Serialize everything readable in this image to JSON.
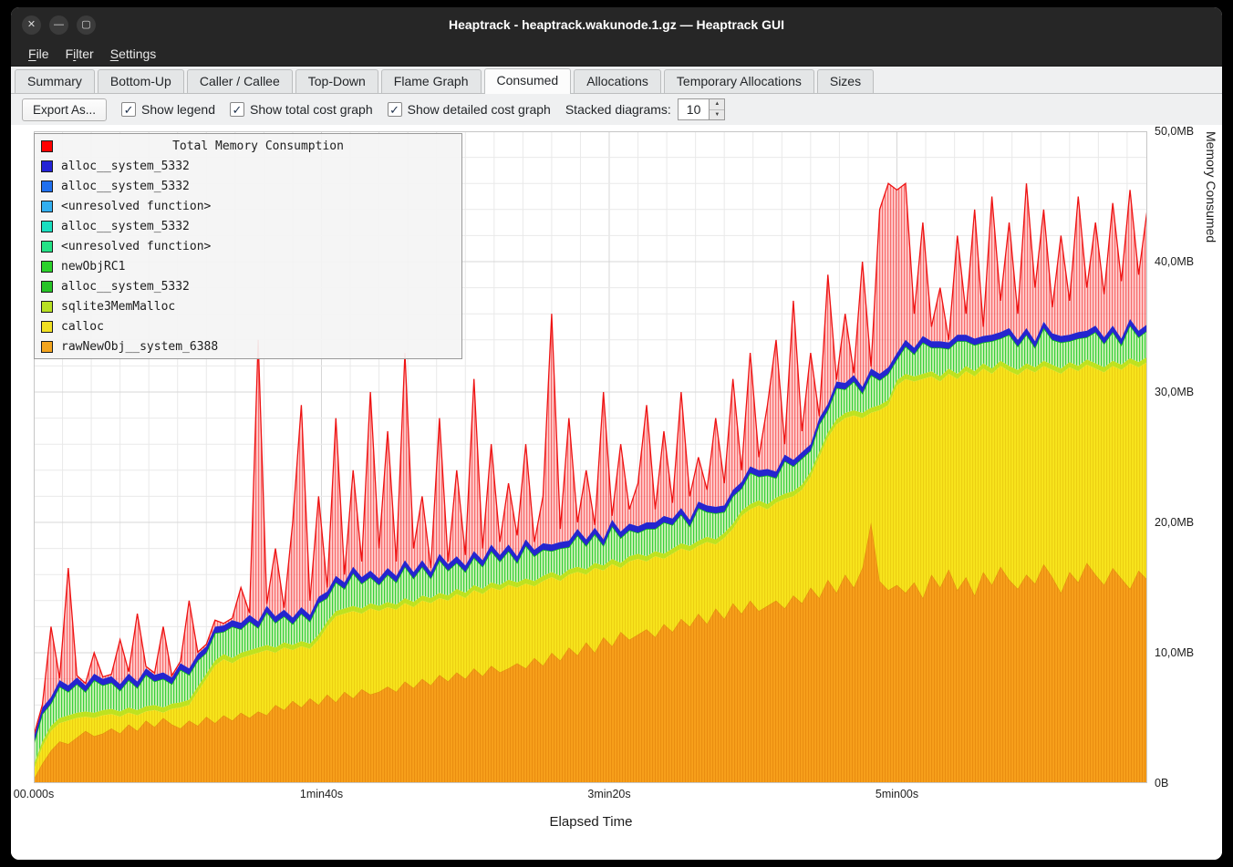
{
  "window": {
    "title": "Heaptrack - heaptrack.wakunode.1.gz — Heaptrack GUI",
    "controls": {
      "close": "✕",
      "minimize": "—",
      "maximize": "▢"
    }
  },
  "menubar": {
    "items": [
      {
        "label": "File",
        "mnemonic_index": 0
      },
      {
        "label": "Filter",
        "mnemonic_index": 1
      },
      {
        "label": "Settings",
        "mnemonic_index": 0
      }
    ]
  },
  "tabs": {
    "active": "Consumed",
    "items": [
      "Summary",
      "Bottom-Up",
      "Caller / Callee",
      "Top-Down",
      "Flame Graph",
      "Consumed",
      "Allocations",
      "Temporary Allocations",
      "Sizes"
    ]
  },
  "toolbar": {
    "export_label": "Export As...",
    "checkboxes": [
      {
        "label": "Show legend",
        "checked": true
      },
      {
        "label": "Show total cost graph",
        "checked": true
      },
      {
        "label": "Show detailed cost graph",
        "checked": true
      }
    ],
    "stacked_label": "Stacked diagrams:",
    "stacked_value": "10",
    "check_glyph": "✓",
    "spin_up": "▲",
    "spin_down": "▼"
  },
  "chart_data": {
    "type": "area",
    "title": "Total Memory Consumption",
    "xlabel": "Elapsed Time",
    "ylabel": "Memory Consumed",
    "x_max_seconds": 387,
    "series_x_step_seconds": 3,
    "ylim_mb": [
      0,
      50
    ],
    "x_ticks": [
      {
        "label": "00.000s",
        "sec": 0
      },
      {
        "label": "1min40s",
        "sec": 100
      },
      {
        "label": "3min20s",
        "sec": 200
      },
      {
        "label": "5min00s",
        "sec": 300
      }
    ],
    "y_ticks": [
      {
        "label": "0B",
        "mb": 0
      },
      {
        "label": "10,0MB",
        "mb": 10
      },
      {
        "label": "20,0MB",
        "mb": 20
      },
      {
        "label": "30,0MB",
        "mb": 30
      },
      {
        "label": "40,0MB",
        "mb": 40
      },
      {
        "label": "50,0MB",
        "mb": 50
      }
    ],
    "legend": [
      {
        "color": "#ff0000",
        "label": "Total Memory Consumption",
        "is_title": true
      },
      {
        "color": "#2323d6",
        "label": "alloc__system_5332"
      },
      {
        "color": "#2070ee",
        "label": "alloc__system_5332"
      },
      {
        "color": "#32aff0",
        "label": "<unresolved function>"
      },
      {
        "color": "#19dfc0",
        "label": "alloc__system_5332"
      },
      {
        "color": "#23e286",
        "label": "<unresolved function>"
      },
      {
        "color": "#2bd22b",
        "label": "newObjRC1"
      },
      {
        "color": "#27c427",
        "label": "alloc__system_5332"
      },
      {
        "color": "#b8e022",
        "label": "sqlite3MemMalloc"
      },
      {
        "color": "#f0e022",
        "label": "calloc"
      },
      {
        "color": "#f2a41d",
        "label": "rawNewObj__system_6388"
      }
    ],
    "series": [
      {
        "name": "rawNewObj__system_6388",
        "role": "orange",
        "color": "#f7a01b",
        "top_mb": [
          0.3,
          1.5,
          2.5,
          3.2,
          3.0,
          3.5,
          4.0,
          3.6,
          3.8,
          4.2,
          3.8,
          4.5,
          4.0,
          4.8,
          4.3,
          5.0,
          4.5,
          4.2,
          4.8,
          4.4,
          5.1,
          4.6,
          5.2,
          4.8,
          5.4,
          5.0,
          5.5,
          5.2,
          6.0,
          5.6,
          6.3,
          5.8,
          6.5,
          6.0,
          6.8,
          6.2,
          7.0,
          6.5,
          7.2,
          6.8,
          7.0,
          7.4,
          7.0,
          7.8,
          7.3,
          8.0,
          7.5,
          8.3,
          7.8,
          8.5,
          8.0,
          8.8,
          8.2,
          9.0,
          8.5,
          8.8,
          9.2,
          8.8,
          9.6,
          9.0,
          10.0,
          9.4,
          10.4,
          9.8,
          10.8,
          10.0,
          11.2,
          10.5,
          11.6,
          11.0,
          11.4,
          11.8,
          11.2,
          12.2,
          11.6,
          12.6,
          12.0,
          13.0,
          12.2,
          13.4,
          12.6,
          13.8,
          13.0,
          14.0,
          13.2,
          13.6,
          14.0,
          13.4,
          14.4,
          13.8,
          15.0,
          14.2,
          15.6,
          14.6,
          16.0,
          15.0,
          16.5,
          20.0,
          15.5,
          14.8,
          15.2,
          14.6,
          15.4,
          14.2,
          16.0,
          15.0,
          16.4,
          14.8,
          15.8,
          14.4,
          16.2,
          15.2,
          16.6,
          15.6,
          14.9,
          16.0,
          15.3,
          16.8,
          15.8,
          14.6,
          16.2,
          15.4,
          16.9,
          16.0,
          15.2,
          16.5,
          15.7,
          14.9,
          16.3,
          15.6
        ]
      },
      {
        "name": "calloc",
        "role": "yellow",
        "color": "#f8e41c",
        "top_mb": [
          1.0,
          2.8,
          4.0,
          4.6,
          4.8,
          5.0,
          5.1,
          5.0,
          5.2,
          5.3,
          5.1,
          5.4,
          5.2,
          5.5,
          5.6,
          5.4,
          5.7,
          5.8,
          6.0,
          7.0,
          8.0,
          9.0,
          9.5,
          9.2,
          9.6,
          9.8,
          10.0,
          10.2,
          10.0,
          10.4,
          10.2,
          10.5,
          10.3,
          11.0,
          12.0,
          12.8,
          13.0,
          13.2,
          13.0,
          13.4,
          13.2,
          13.5,
          13.3,
          13.8,
          13.5,
          14.0,
          13.8,
          14.2,
          14.0,
          14.5,
          14.2,
          14.8,
          14.5,
          15.0,
          14.8,
          15.2,
          15.0,
          15.3,
          15.1,
          15.5,
          15.8,
          15.5,
          16.0,
          16.2,
          16.0,
          16.5,
          16.3,
          16.8,
          16.5,
          17.0,
          17.2,
          17.0,
          17.4,
          17.2,
          17.6,
          18.0,
          17.8,
          18.2,
          18.5,
          18.3,
          18.8,
          19.5,
          20.5,
          21.0,
          21.3,
          21.0,
          21.5,
          21.8,
          22.0,
          22.5,
          23.5,
          25.0,
          26.5,
          27.5,
          28.0,
          28.2,
          28.0,
          28.4,
          28.6,
          29.0,
          30.5,
          31.0,
          30.8,
          31.0,
          31.2,
          30.8,
          31.4,
          31.0,
          31.6,
          31.2,
          31.8,
          31.4,
          32.0,
          31.6,
          31.3,
          31.8,
          31.5,
          32.0,
          31.7,
          31.4,
          31.9,
          31.6,
          32.1,
          31.8,
          31.5,
          32.0,
          31.7,
          32.2,
          31.9,
          32.3
        ]
      },
      {
        "name": "sqlite3MemMalloc",
        "role": "sqlite-band",
        "color": "#bfe21f",
        "band_mb": 0.4
      },
      {
        "name": "newObjRC1 / alloc__system_5332 / unresolved",
        "role": "green-band",
        "color": "#2bd22b",
        "band_pattern_mb": [
          1.6,
          2.1,
          1.7,
          2.4,
          1.8,
          2.2,
          1.5,
          2.5,
          1.9,
          2.0
        ]
      },
      {
        "name": "alloc__system_5332",
        "role": "blue-band",
        "color": "#2525cf",
        "band_mb": 0.5
      },
      {
        "name": "Total Memory Consumption",
        "role": "total",
        "color": "#ff0000",
        "top_mb": [
          3.5,
          6,
          12,
          7,
          16.5,
          8,
          7,
          10,
          7.5,
          6.8,
          11,
          7.2,
          13,
          7.5,
          8,
          12,
          7.8,
          8.2,
          14,
          8,
          8.5,
          12.5,
          8.8,
          9,
          15,
          9.2,
          34,
          12,
          18,
          13,
          20,
          29,
          14,
          22,
          15,
          28,
          16,
          24,
          17,
          30,
          18,
          27,
          17,
          33,
          18,
          22,
          16.5,
          28,
          17,
          24,
          17.5,
          31,
          18,
          26,
          18.5,
          23,
          19,
          26,
          18.5,
          22,
          36,
          19.5,
          28,
          20,
          24,
          19.8,
          30,
          20.5,
          26,
          21,
          23,
          29,
          21,
          27,
          21.5,
          30,
          22,
          25,
          22.5,
          28,
          23,
          31,
          24,
          33,
          25,
          29,
          34,
          26,
          37,
          27,
          33,
          28,
          39,
          29,
          36,
          30,
          40,
          31,
          44,
          46,
          45.5,
          46,
          36,
          43,
          35,
          38,
          34,
          42,
          36,
          44,
          35,
          45,
          37,
          43,
          36,
          46,
          38,
          44,
          36.5,
          42,
          37,
          45,
          38,
          43,
          37.5,
          44.5,
          38.5,
          45.5,
          39,
          44
        ]
      }
    ]
  }
}
